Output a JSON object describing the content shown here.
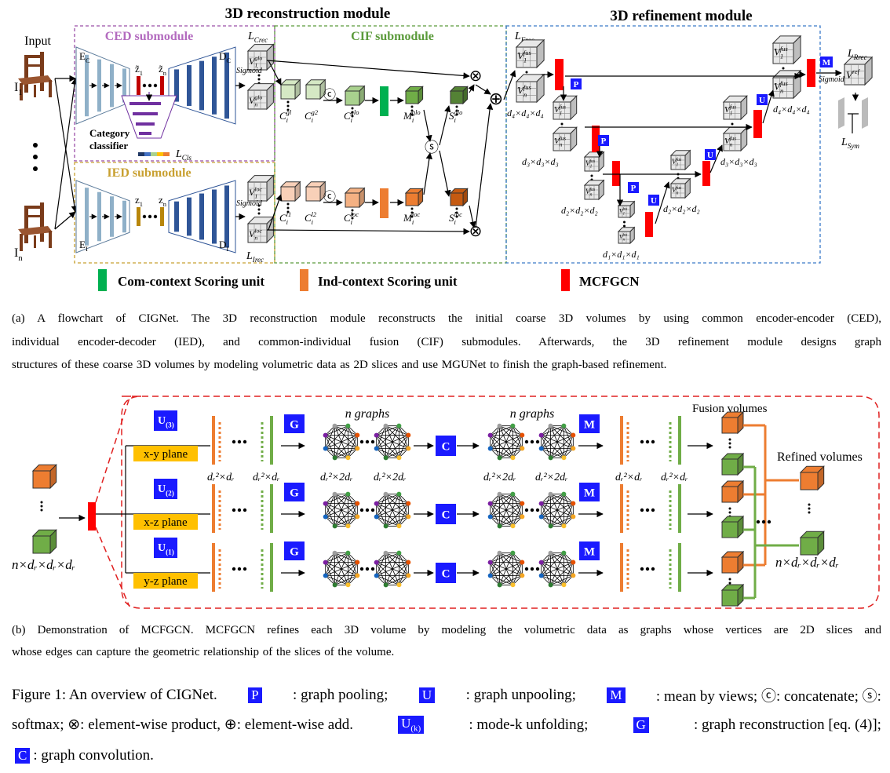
{
  "header": {
    "reconstruction_title": "3D reconstruction  module",
    "refinement_title": "3D refinement  module"
  },
  "panel_a": {
    "input_label": "Input",
    "inputs": [
      {
        "t": "I",
        "sub": "1"
      },
      {
        "t": "I",
        "sub": "n"
      }
    ],
    "submodules": {
      "ced": "CED submodule",
      "cif": "CIF submodule",
      "ied": "IED submodule"
    },
    "encoders": [
      {
        "t": "E",
        "sub": "C"
      },
      {
        "t": "D",
        "sub": "C"
      },
      {
        "t": "E",
        "sub": "I"
      },
      {
        "t": "D",
        "sub": "I"
      }
    ],
    "latents": [
      {
        "t": "z̃",
        "sub": "1"
      },
      {
        "t": "z̃",
        "sub": "n"
      },
      {
        "t": "z",
        "sub": "1"
      },
      {
        "t": "z",
        "sub": "n"
      }
    ],
    "classifier": [
      "Category",
      "classifier"
    ],
    "losses": [
      {
        "t": "L",
        "sub": "Crec"
      },
      {
        "t": "L",
        "sub": "Cls"
      },
      {
        "t": "L",
        "sub": "Irec"
      },
      {
        "t": "L",
        "sub": "Frec"
      },
      {
        "t": "L",
        "sub": "Rrec"
      },
      {
        "t": "L",
        "sub": "Sym"
      }
    ],
    "sigmoid": "Sigmoid",
    "volumes": [
      {
        "t": "V",
        "sub": "1",
        "sup": "glo"
      },
      {
        "t": "V",
        "sub": "n",
        "sup": "glo"
      },
      {
        "t": "V",
        "sub": "1",
        "sup": "loc"
      },
      {
        "t": "V",
        "sub": "n",
        "sup": "loc"
      }
    ],
    "features": [
      {
        "t": "C",
        "sub": "i",
        "sup": "gl"
      },
      {
        "t": "C",
        "sub": "i",
        "sup": "g2"
      },
      {
        "t": "C",
        "sub": "i",
        "sup": "glo"
      },
      {
        "t": "M",
        "sub": "i",
        "sup": "glo"
      },
      {
        "t": "S",
        "sub": "i",
        "sup": "glo"
      },
      {
        "t": "C",
        "sub": "i",
        "sup": "l1"
      },
      {
        "t": "C",
        "sub": "i",
        "sup": "l2"
      },
      {
        "t": "C",
        "sub": "i",
        "sup": "loc"
      },
      {
        "t": "M",
        "sub": "i",
        "sup": "loc"
      },
      {
        "t": "S",
        "sub": "i",
        "sup": "loc"
      }
    ],
    "ops": {
      "concat": "ⓒ",
      "softmax": "ⓢ",
      "product": "⊗",
      "add": "⊕"
    },
    "refinement": {
      "fus_volumes": [
        {
          "t": "V",
          "sub": "1",
          "sup": "fus"
        },
        {
          "t": "V",
          "sub": "n",
          "sup": "fus"
        }
      ],
      "ref_volume": {
        "t": "V",
        "sup": "ref"
      },
      "dims": [
        "d₄×d₄×d₄",
        "d₃×d₃×d₃",
        "d₂×d₂×d₂",
        "d₁×d₁×d₁"
      ],
      "pool": "P",
      "unpool": "U",
      "mean": "M"
    }
  },
  "legend": [
    "Com-context Scoring unit",
    "Ind-context Scoring unit",
    "MCFGCN"
  ],
  "caption_a": [
    "(a) A flowchart of CIGNet. The 3D reconstruction module reconstructs the initial coarse 3D volumes by using common encoder-encoder (CED),",
    "individual encoder-decoder (IED), and common-individual fusion (CIF) submodules. Afterwards, the 3D refinement module designs graph",
    "structures of these coarse 3D volumes by modeling volumetric data as 2D slices and use MGUNet to finish the graph-based refinement."
  ],
  "panel_b": {
    "units": [
      {
        "t": "U",
        "sub": "(3)"
      },
      {
        "t": "U",
        "sub": "(2)"
      },
      {
        "t": "U",
        "sub": "(1)"
      }
    ],
    "planes": [
      "x-y plane",
      "x-z plane",
      "y-z plane"
    ],
    "reconstruct": "G",
    "convolve": "C",
    "mean": "M",
    "graphs_label": "n graphs",
    "slice_dims": "dᵣ²×dᵣ",
    "graph_dims": "dᵣ²×2dᵣ",
    "volume_dims": "n×dᵣ×dᵣ×dᵣ",
    "fusion": "Fusion volumes",
    "refined": "Refined volumes"
  },
  "caption_b": [
    "(b) Demonstration of MCFGCN. MCFGCN refines each 3D volume by modeling the volumetric data as graphs whose vertices are 2D slices and",
    "whose edges can capture the geometric relationship of the slices of the volume."
  ],
  "figure_caption": {
    "lines": [
      [
        "Figure 1: An overview of CIGNet.",
        {
          "box": "P"
        },
        ": graph pooling;",
        {
          "box": "U"
        },
        ": graph unpooling;",
        {
          "box": "M"
        },
        ": mean by views; ⓒ: concatenate; ⓢ:"
      ],
      [
        "softmax; ⊗: element-wise product, ⊕: element-wise add.",
        {
          "box": "U",
          "sub": "(k)"
        },
        ": mode-k unfolding;",
        {
          "box": "G"
        },
        ": graph reconstruction [eq. (4)];"
      ],
      [
        {
          "box": "C"
        },
        ": graph convolution."
      ]
    ]
  }
}
